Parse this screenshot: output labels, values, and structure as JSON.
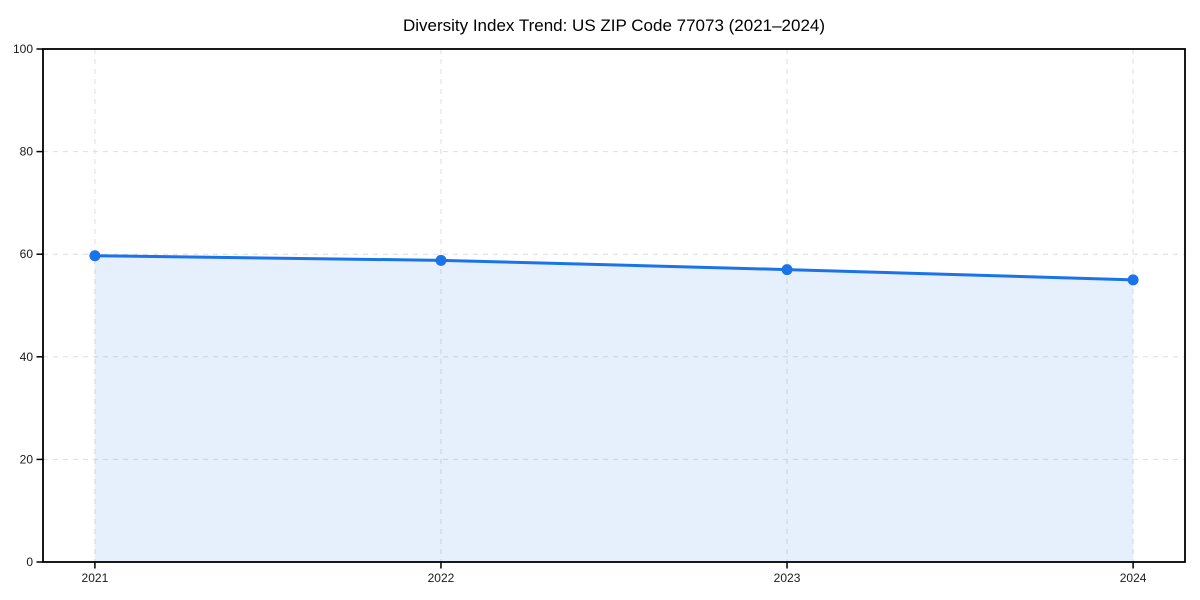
{
  "chart_data": {
    "type": "area",
    "title": "Diversity Index Trend: US ZIP Code 77073 (2021–2024)",
    "x": [
      2021,
      2022,
      2023,
      2024
    ],
    "series": [
      {
        "name": "Diversity Index",
        "values": [
          59.7,
          58.8,
          57.0,
          55.0
        ]
      }
    ],
    "xlabel": "",
    "ylabel": "",
    "ylim": [
      0,
      100
    ],
    "yticks": [
      0,
      20,
      40,
      60,
      80,
      100
    ],
    "xticks": [
      2021,
      2022,
      2023,
      2024
    ],
    "xtick_labels": [
      "2021",
      "2022",
      "2023",
      "2024"
    ],
    "ytick_labels": [
      "0",
      "20",
      "40",
      "60",
      "80",
      "100"
    ],
    "grid": "dashed",
    "legend_position": "none",
    "colors": {
      "line": "#1a73e8",
      "marker": "#1a73e8",
      "fill": "#1a73e8",
      "fill_opacity": "0.11",
      "grid": "#dedede",
      "axis": "#000000",
      "tick_text": "#1a1a1a",
      "background": "#ffffff"
    }
  }
}
